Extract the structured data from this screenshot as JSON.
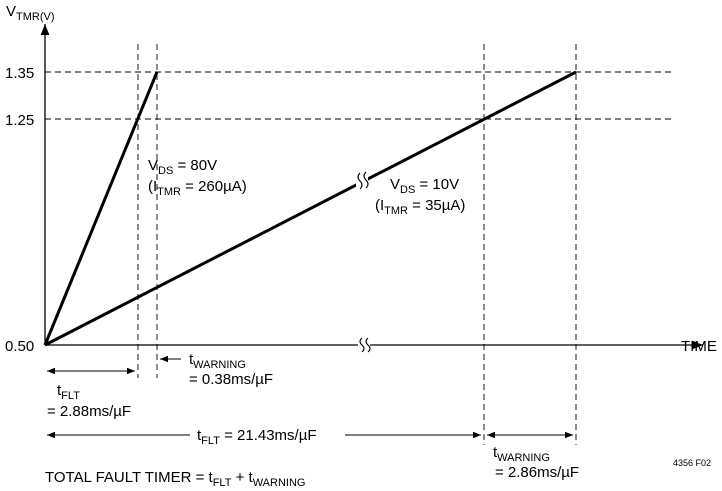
{
  "axes": {
    "y_label_main": "V",
    "y_label_sub": "TMR(V)",
    "x_label": "TIME",
    "y_ticks": [
      "1.35",
      "1.25",
      "0.50"
    ]
  },
  "curves": {
    "steep": {
      "l1_main": "V",
      "l1_sub": "DS",
      "l1_rest": " = 80V",
      "l2_pre": "(I",
      "l2_sub": "TMR",
      "l2_rest": " = 260µA)"
    },
    "shallow": {
      "l1_main": "V",
      "l1_sub": "DS",
      "l1_rest": " = 10V",
      "l2_pre": "(I",
      "l2_sub": "TMR",
      "l2_rest": " = 35µA)"
    }
  },
  "dimensions": {
    "tflt_steep": {
      "main": "t",
      "sub": "FLT",
      "value": "= 2.88ms/µF"
    },
    "twarn_steep": {
      "main": "t",
      "sub": "WARNING",
      "value": "= 0.38ms/µF"
    },
    "tflt_shallow": {
      "main": "t",
      "sub": "FLT",
      "rest": " = 21.43ms/µF"
    },
    "twarn_shallow": {
      "main": "t",
      "sub": "WARNING",
      "value": "= 2.86ms/µF"
    }
  },
  "footer": {
    "formula_pre": "TOTAL FAULT TIMER = t",
    "formula_sub1": "FLT",
    "formula_mid": " + t",
    "formula_sub2": "WARNING",
    "fig_id": "4356 F02"
  }
}
